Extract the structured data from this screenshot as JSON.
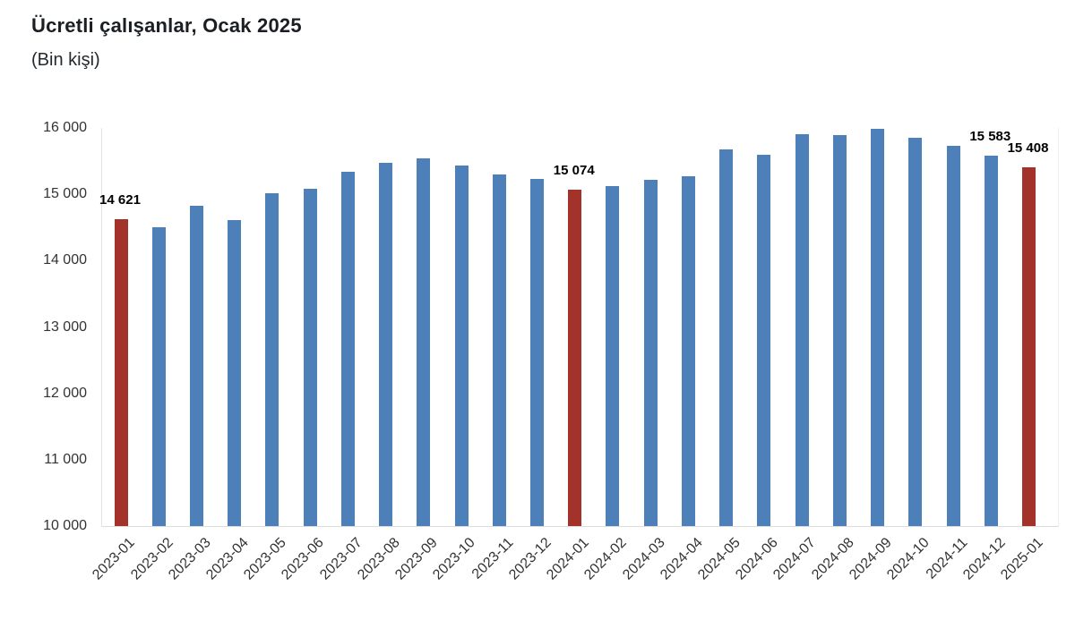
{
  "header": {
    "title": "Ücretli çalışanlar, Ocak 2025",
    "subtitle": "(Bin kişi)"
  },
  "chart_data": {
    "type": "bar",
    "title": "Ücretli çalışanlar, Ocak 2025",
    "subtitle": "(Bin kişi)",
    "xlabel": "",
    "ylabel": "",
    "ylim": [
      10000,
      16000
    ],
    "grid": false,
    "legend": false,
    "y_ticks": [
      {
        "value": 16000,
        "label": "16 000"
      },
      {
        "value": 15000,
        "label": "15 000"
      },
      {
        "value": 14000,
        "label": "14 000"
      },
      {
        "value": 13000,
        "label": "13 000"
      },
      {
        "value": 12000,
        "label": "12 000"
      },
      {
        "value": 11000,
        "label": "11 000"
      },
      {
        "value": 10000,
        "label": "10 000"
      }
    ],
    "categories": [
      "2023-01",
      "2023-02",
      "2023-03",
      "2023-04",
      "2023-05",
      "2023-06",
      "2023-07",
      "2023-08",
      "2023-09",
      "2023-10",
      "2023-11",
      "2023-12",
      "2024-01",
      "2024-02",
      "2024-03",
      "2024-04",
      "2024-05",
      "2024-06",
      "2024-07",
      "2024-08",
      "2024-09",
      "2024-10",
      "2024-11",
      "2024-12",
      "2025-01"
    ],
    "values": [
      14621,
      14500,
      14825,
      14610,
      15015,
      15085,
      15345,
      15475,
      15545,
      15440,
      15300,
      15230,
      15074,
      15120,
      15220,
      15275,
      15680,
      15600,
      15900,
      15890,
      15990,
      15855,
      15735,
      15583,
      15408
    ],
    "highlighted_indices": [
      0,
      12,
      24
    ],
    "data_labels": [
      {
        "index": 0,
        "text": "14 621"
      },
      {
        "index": 12,
        "text": "15 074"
      },
      {
        "index": 23,
        "text": "15 583"
      },
      {
        "index": 24,
        "text": "15 408"
      }
    ],
    "colors": {
      "bar": "#4d80b8",
      "bar_highlight": "#a3322a",
      "axis_text": "#333333",
      "label_text": "#000000"
    }
  }
}
